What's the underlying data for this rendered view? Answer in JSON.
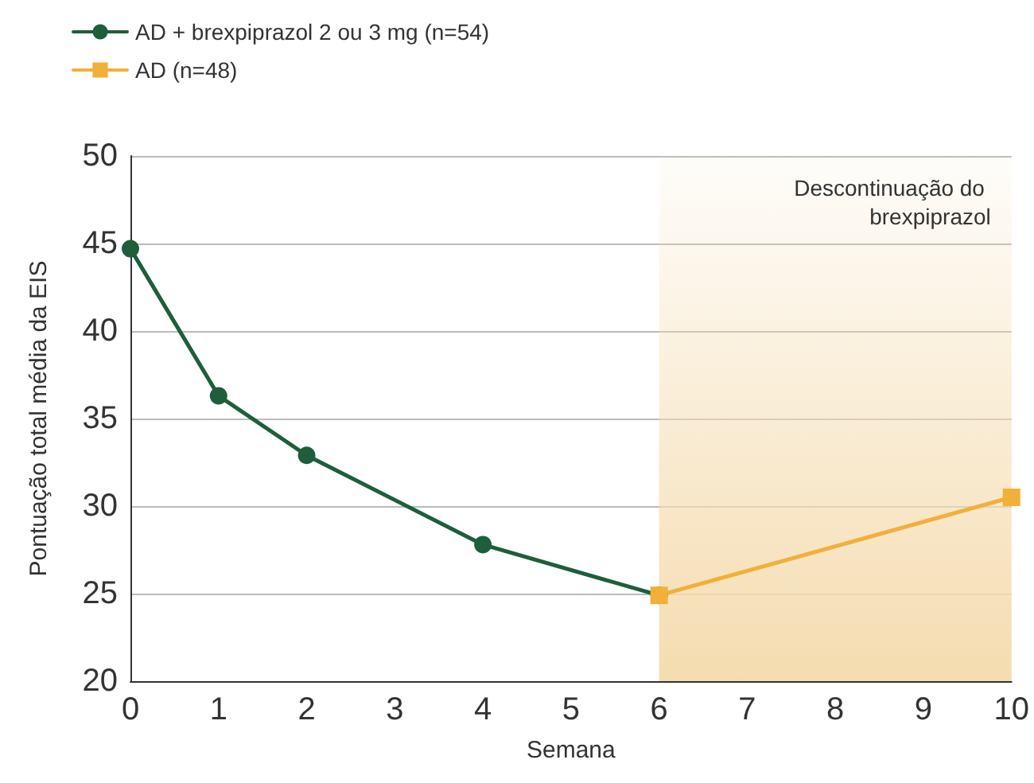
{
  "chart_data": {
    "type": "line",
    "xlabel": "Semana",
    "ylabel": "Pontuação total média da EIS",
    "xlim": [
      0,
      10
    ],
    "xticks": [
      0,
      1,
      2,
      3,
      4,
      5,
      6,
      7,
      8,
      9,
      10
    ],
    "ylim": [
      20,
      50
    ],
    "yticks": [
      20,
      25,
      30,
      35,
      40,
      45,
      50
    ],
    "grid": "y",
    "legend": "top left",
    "line_style": "solid",
    "series": [
      {
        "name": "AD + brexpiprazol 2 ou 3 mg (n=54)",
        "color": "#1e5e3a",
        "marker": "circle",
        "x": [
          0,
          1,
          2,
          4,
          6
        ],
        "values": [
          44.7,
          36.3,
          32.9,
          27.8,
          24.9
        ]
      },
      {
        "name": "AD (n=48)",
        "color": "#f0b03a",
        "marker": "square",
        "x": [
          6,
          10
        ],
        "values": [
          24.9,
          30.5
        ]
      }
    ],
    "bands": [
      {
        "axis": "x",
        "from": 6,
        "to": 10,
        "label": "Descontinuação do brexpiprazol",
        "color": "#f5dcb0"
      }
    ]
  }
}
